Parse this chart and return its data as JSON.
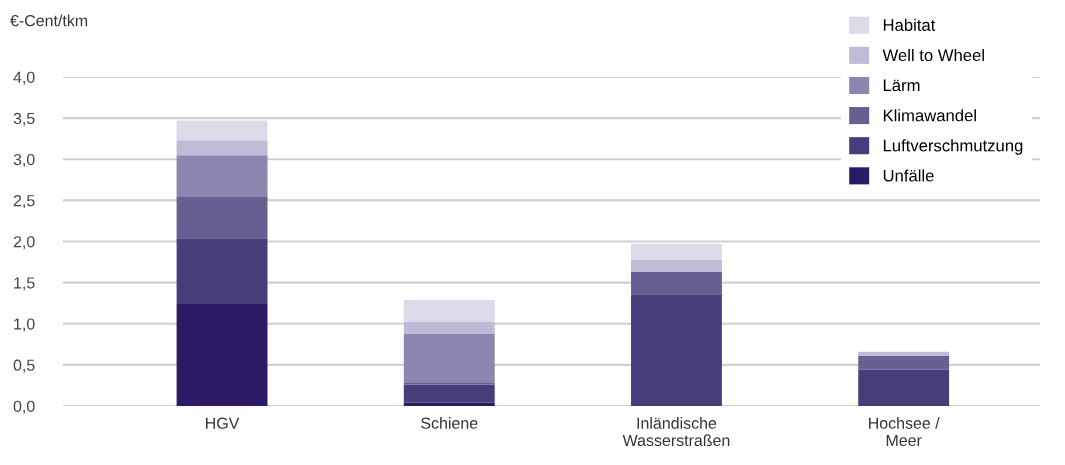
{
  "chart_data": {
    "type": "bar",
    "stacked": true,
    "ylabel": "€-Cent/tkm",
    "categories": [
      "HGV",
      "Schiene",
      "Inländische\nWasserstraßen",
      "Hochsee /\nMeer"
    ],
    "series": [
      {
        "name": "Unfälle",
        "color": "#2c1a66",
        "values": [
          1.24,
          0.04,
          0,
          0
        ]
      },
      {
        "name": "Luftverschmutzung",
        "color": "#483c7a",
        "values": [
          0.8,
          0.22,
          1.36,
          0.44
        ]
      },
      {
        "name": "Klimawandel",
        "color": "#685e91",
        "values": [
          0.51,
          0.02,
          0.27,
          0.17
        ]
      },
      {
        "name": "Lärm",
        "color": "#8c86b0",
        "values": [
          0.5,
          0.6,
          0,
          0
        ]
      },
      {
        "name": "Well to Wheel",
        "color": "#bfbad6",
        "values": [
          0.18,
          0.14,
          0.15,
          0.05
        ]
      },
      {
        "name": "Habitat",
        "color": "#dcd9e8",
        "values": [
          0.24,
          0.27,
          0.19,
          0
        ]
      }
    ],
    "ylim": [
      0,
      4.0
    ],
    "yticks": [
      {
        "value": 0,
        "label": "0,0"
      },
      {
        "value": 0.5,
        "label": "0,5"
      },
      {
        "value": 1.0,
        "label": "1,0"
      },
      {
        "value": 1.5,
        "label": "1,5"
      },
      {
        "value": 2.0,
        "label": "2,0"
      },
      {
        "value": 2.5,
        "label": "2,5"
      },
      {
        "value": 3.0,
        "label": "3,0"
      },
      {
        "value": 3.5,
        "label": "3,5"
      },
      {
        "value": 4.0,
        "label": "4,0"
      }
    ],
    "grid": "y",
    "legend": "top right"
  }
}
